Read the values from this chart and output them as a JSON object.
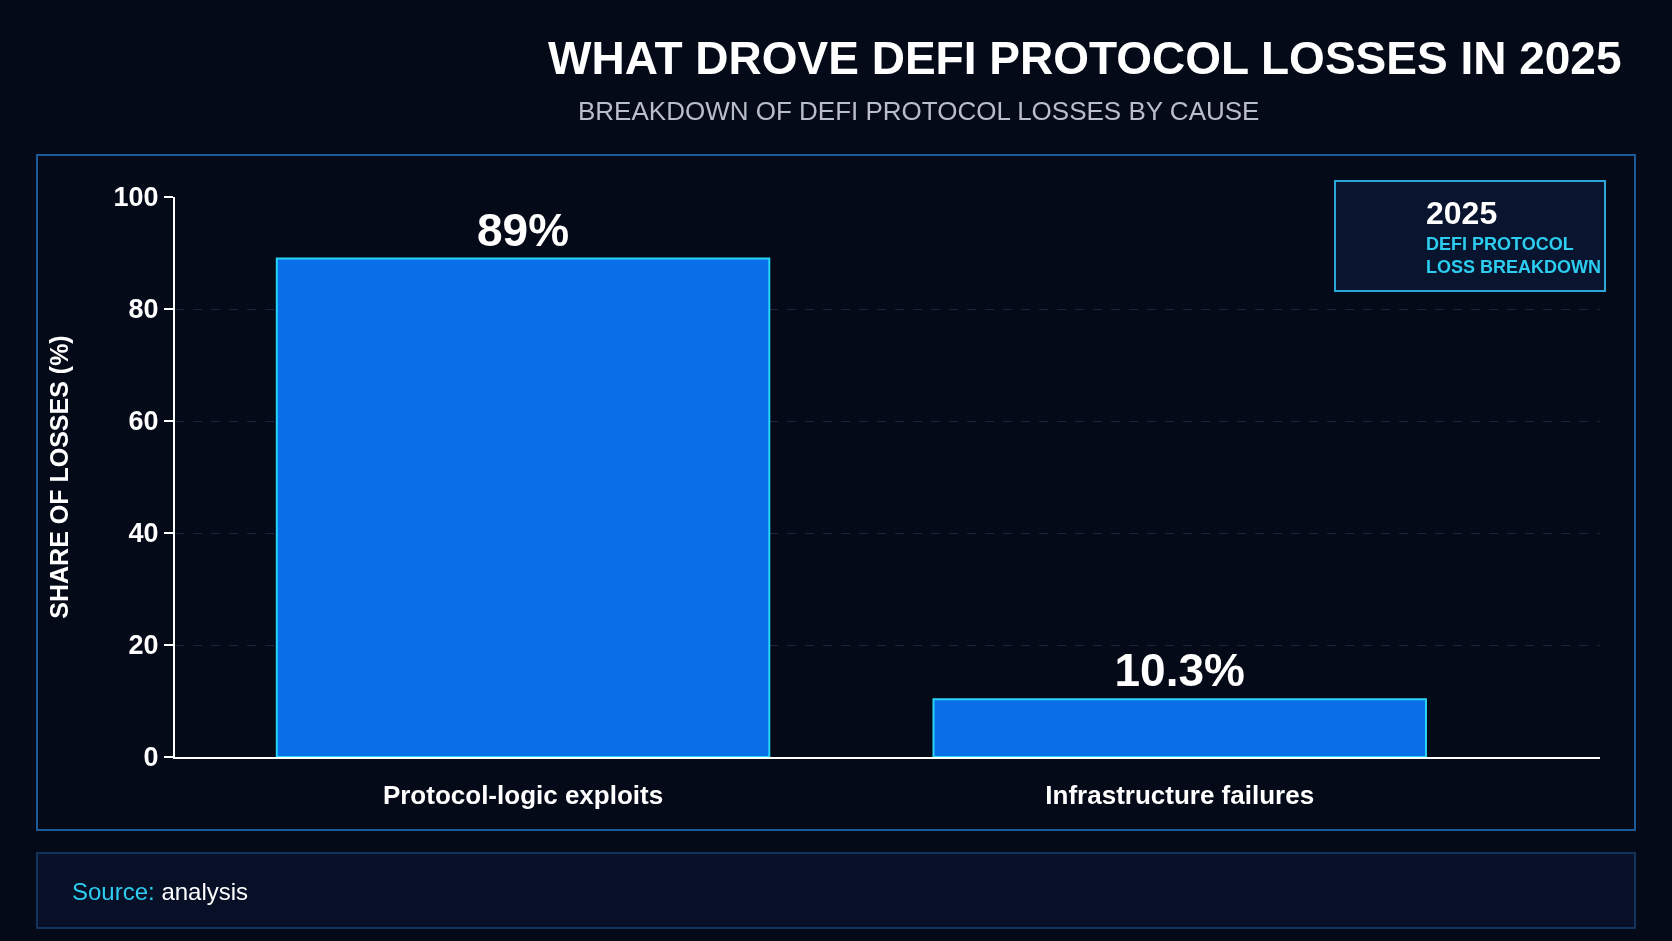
{
  "chart_data": {
    "type": "bar",
    "title": "WHAT DROVE DEFI PROTOCOL LOSSES IN 2025",
    "subtitle": "BREAKDOWN OF DEFI PROTOCOL LOSSES BY CAUSE",
    "ylabel": "SHARE OF LOSSES (%)",
    "categories": [
      "Protocol-logic exploits",
      "Infrastructure failures"
    ],
    "values": [
      89,
      10.3
    ],
    "value_labels": [
      "89%",
      "10.3%"
    ],
    "color": "#0a6ee8",
    "ylim": [
      0,
      100
    ],
    "yticks": [
      0,
      20,
      40,
      60,
      80,
      100
    ],
    "grid": "y",
    "annotations": [
      "2025",
      "DEFI PROTOCOL LOSS BREAKDOWN",
      "Source: analysis"
    ]
  }
}
